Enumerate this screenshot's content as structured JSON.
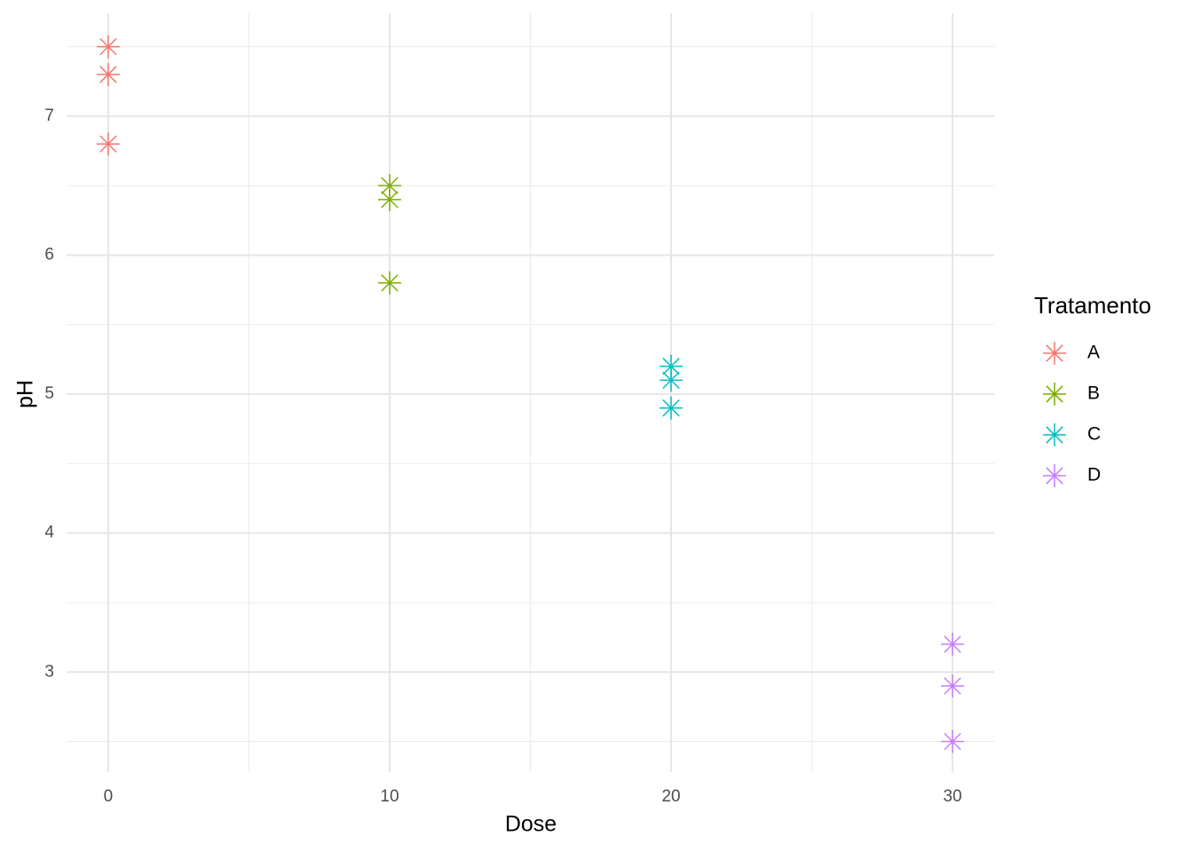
{
  "chart_data": {
    "type": "scatter",
    "x_label": "Dose",
    "y_label": "pH",
    "legend_title": "Tratamento",
    "legend_position": "right",
    "grid": true,
    "marker": "asterisk",
    "xlim": [
      -1.48,
      31.48
    ],
    "ylim": [
      2.28,
      7.74
    ],
    "xticks": [
      0,
      10,
      20,
      30
    ],
    "yticks": [
      3,
      4,
      5,
      6,
      7
    ],
    "xminor": [
      5,
      15,
      25
    ],
    "yminor": [
      2.5,
      3.5,
      4.5,
      5.5,
      6.5,
      7.5
    ],
    "series": [
      {
        "name": "A",
        "color": "#F8766D",
        "x": [
          0,
          0,
          0
        ],
        "values": [
          7.5,
          7.3,
          6.8
        ]
      },
      {
        "name": "B",
        "color": "#7CAE00",
        "x": [
          10,
          10,
          10
        ],
        "values": [
          6.5,
          6.4,
          5.8
        ]
      },
      {
        "name": "C",
        "color": "#00BFC4",
        "x": [
          20,
          20,
          20
        ],
        "values": [
          5.2,
          5.1,
          4.9
        ]
      },
      {
        "name": "D",
        "color": "#C77CFF",
        "x": [
          30,
          30,
          30
        ],
        "values": [
          3.2,
          2.9,
          2.5
        ]
      }
    ]
  }
}
